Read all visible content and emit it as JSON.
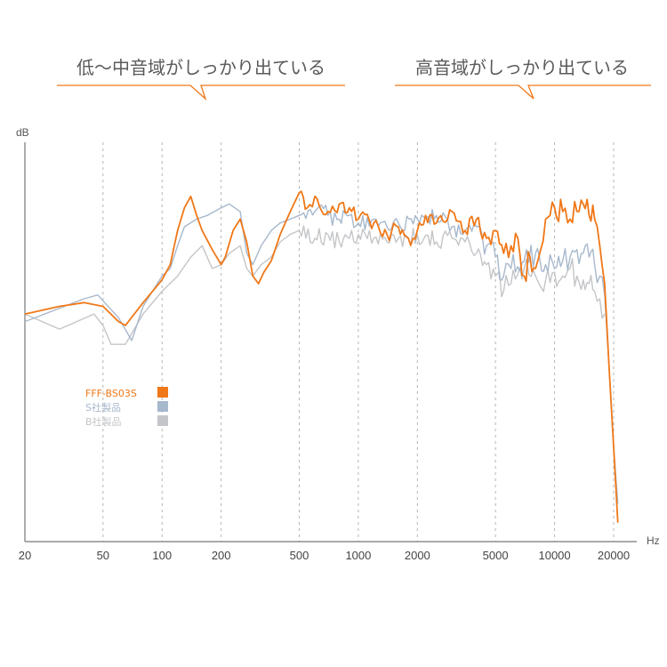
{
  "annotations": {
    "low_mid": "低〜中音域がしっかり出ている",
    "high": "高音域がしっかり出ている"
  },
  "chart_data": {
    "type": "line",
    "xscale": "log",
    "xlabel": "Hz",
    "ylabel": "dB",
    "xlim": [
      20,
      22000
    ],
    "ylim": [
      0,
      100
    ],
    "x_ticks": [
      20,
      50,
      100,
      200,
      500,
      1000,
      2000,
      5000,
      10000,
      20000
    ],
    "x_tick_labels": [
      "20",
      "50",
      "100",
      "200",
      "500",
      "1000",
      "2000",
      "5000",
      "10000",
      "20000"
    ],
    "x_gridlines": [
      50,
      100,
      200,
      500,
      1000,
      2000,
      5000,
      10000,
      20000
    ],
    "grid": "vertical dashed",
    "legend_position": "left-middle",
    "series": [
      {
        "name": "FFF-BS03S",
        "color": "#f07818",
        "points": [
          [
            20,
            60
          ],
          [
            30,
            62
          ],
          [
            40,
            63
          ],
          [
            50,
            62
          ],
          [
            60,
            58
          ],
          [
            65,
            57
          ],
          [
            80,
            63
          ],
          [
            100,
            69
          ],
          [
            110,
            73
          ],
          [
            120,
            82
          ],
          [
            130,
            88
          ],
          [
            140,
            91
          ],
          [
            150,
            86
          ],
          [
            160,
            82
          ],
          [
            180,
            77
          ],
          [
            200,
            73
          ],
          [
            210,
            75
          ],
          [
            230,
            82
          ],
          [
            250,
            85
          ],
          [
            270,
            79
          ],
          [
            290,
            70
          ],
          [
            310,
            68
          ],
          [
            330,
            71
          ],
          [
            360,
            74
          ],
          [
            400,
            81
          ],
          [
            450,
            87
          ],
          [
            500,
            92
          ],
          [
            550,
            88
          ],
          [
            600,
            91
          ],
          [
            700,
            87
          ],
          [
            800,
            89
          ],
          [
            900,
            88
          ],
          [
            1000,
            85
          ],
          [
            1200,
            84
          ],
          [
            1400,
            81
          ],
          [
            1600,
            83
          ],
          [
            1800,
            80
          ],
          [
            2000,
            82
          ],
          [
            2200,
            86
          ],
          [
            2500,
            84
          ],
          [
            3000,
            87
          ],
          [
            3500,
            82
          ],
          [
            4000,
            85
          ],
          [
            4500,
            80
          ],
          [
            5000,
            82
          ],
          [
            5500,
            76
          ],
          [
            6000,
            78
          ],
          [
            6500,
            80
          ],
          [
            7000,
            70
          ],
          [
            7500,
            75
          ],
          [
            8000,
            72
          ],
          [
            8500,
            77
          ],
          [
            9000,
            85
          ],
          [
            10000,
            88
          ],
          [
            11000,
            87
          ],
          [
            12000,
            85
          ],
          [
            13000,
            87
          ],
          [
            14000,
            89
          ],
          [
            15000,
            86
          ],
          [
            16000,
            85
          ],
          [
            17000,
            78
          ],
          [
            18000,
            68
          ],
          [
            19000,
            45
          ],
          [
            20000,
            25
          ],
          [
            21000,
            5
          ]
        ]
      },
      {
        "name": "S社製品",
        "color": "#a7b8cc",
        "points": [
          [
            20,
            58
          ],
          [
            40,
            64
          ],
          [
            47,
            65
          ],
          [
            60,
            59
          ],
          [
            70,
            53
          ],
          [
            80,
            62
          ],
          [
            100,
            70
          ],
          [
            110,
            72
          ],
          [
            120,
            78
          ],
          [
            130,
            83
          ],
          [
            150,
            85
          ],
          [
            170,
            86
          ],
          [
            200,
            88
          ],
          [
            220,
            89
          ],
          [
            250,
            87
          ],
          [
            270,
            76
          ],
          [
            290,
            73
          ],
          [
            320,
            78
          ],
          [
            360,
            82
          ],
          [
            400,
            84
          ],
          [
            450,
            85
          ],
          [
            500,
            86
          ],
          [
            600,
            87
          ],
          [
            700,
            86
          ],
          [
            800,
            85
          ],
          [
            900,
            86
          ],
          [
            1000,
            84
          ],
          [
            1200,
            85
          ],
          [
            1400,
            83
          ],
          [
            1600,
            84
          ],
          [
            2000,
            85
          ],
          [
            2500,
            86
          ],
          [
            3000,
            83
          ],
          [
            3500,
            82
          ],
          [
            4000,
            83
          ],
          [
            4500,
            78
          ],
          [
            5000,
            75
          ],
          [
            5500,
            70
          ],
          [
            6000,
            72
          ],
          [
            7000,
            74
          ],
          [
            8000,
            76
          ],
          [
            9000,
            73
          ],
          [
            10000,
            72
          ],
          [
            11000,
            74
          ],
          [
            12000,
            75
          ],
          [
            13000,
            77
          ],
          [
            14000,
            76
          ],
          [
            15000,
            75
          ],
          [
            16000,
            73
          ],
          [
            17000,
            70
          ],
          [
            18000,
            65
          ],
          [
            19000,
            45
          ],
          [
            20000,
            25
          ],
          [
            21000,
            10
          ]
        ]
      },
      {
        "name": "B社製品",
        "color": "#c3c5c8",
        "points": [
          [
            20,
            60
          ],
          [
            30,
            56
          ],
          [
            45,
            60
          ],
          [
            50,
            57
          ],
          [
            55,
            52
          ],
          [
            65,
            52
          ],
          [
            80,
            60
          ],
          [
            100,
            66
          ],
          [
            120,
            70
          ],
          [
            140,
            75
          ],
          [
            160,
            78
          ],
          [
            180,
            72
          ],
          [
            200,
            73
          ],
          [
            220,
            76
          ],
          [
            250,
            78
          ],
          [
            270,
            72
          ],
          [
            290,
            70
          ],
          [
            320,
            73
          ],
          [
            360,
            75
          ],
          [
            400,
            79
          ],
          [
            450,
            81
          ],
          [
            500,
            82
          ],
          [
            600,
            80
          ],
          [
            700,
            81
          ],
          [
            800,
            79
          ],
          [
            900,
            80
          ],
          [
            1000,
            81
          ],
          [
            1200,
            80
          ],
          [
            1400,
            79
          ],
          [
            1600,
            80
          ],
          [
            2000,
            81
          ],
          [
            2500,
            79
          ],
          [
            3000,
            80
          ],
          [
            3500,
            79
          ],
          [
            4000,
            76
          ],
          [
            4500,
            73
          ],
          [
            5000,
            70
          ],
          [
            5500,
            66
          ],
          [
            6000,
            68
          ],
          [
            7000,
            72
          ],
          [
            8000,
            70
          ],
          [
            9000,
            69
          ],
          [
            10000,
            71
          ],
          [
            11000,
            70
          ],
          [
            12000,
            72
          ],
          [
            13000,
            70
          ],
          [
            14000,
            69
          ],
          [
            15000,
            68
          ],
          [
            16000,
            66
          ],
          [
            17000,
            64
          ],
          [
            18000,
            60
          ]
        ]
      }
    ]
  }
}
